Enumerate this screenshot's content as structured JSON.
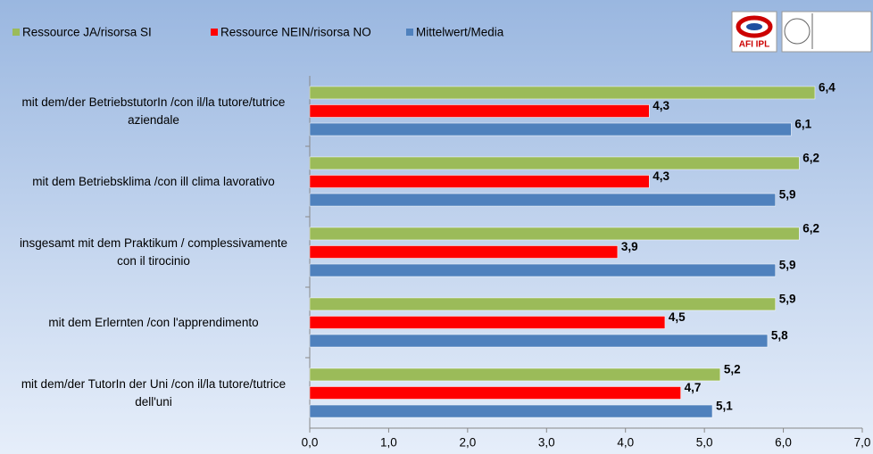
{
  "chart_data": {
    "type": "hbar",
    "logo_text": "AFI IPL",
    "categories": [
      "mit dem/der BetriebstutorIn /con il/la tutore/tutrice aziendale",
      "mit dem Betriebsklima /con ill clima lavorativo",
      "insgesamt mit dem Praktikum / complessivamente con il tirocinio",
      "mit dem Erlernten /con l'apprendimento",
      "mit dem/der TutorIn der Uni /con il/la tutore/tutrice dell'uni"
    ],
    "series": [
      {
        "name": "Ressource JA/risorsa SI",
        "color": "#9bbb59",
        "values": [
          6.4,
          6.2,
          6.2,
          5.9,
          5.2
        ],
        "value_labels": [
          "6,4",
          "6,2",
          "6,2",
          "5,9",
          "5,2"
        ]
      },
      {
        "name": "Ressource NEIN/risorsa NO",
        "color": "#ff0000",
        "values": [
          4.3,
          4.3,
          3.9,
          4.5,
          4.7
        ],
        "value_labels": [
          "4,3",
          "4,3",
          "3,9",
          "4,5",
          "4,7"
        ]
      },
      {
        "name": "Mittelwert/Media",
        "color": "#4f81bd",
        "values": [
          6.1,
          5.9,
          5.9,
          5.8,
          5.1
        ],
        "value_labels": [
          "6,1",
          "5,9",
          "5,9",
          "5,8",
          "5,1"
        ]
      }
    ],
    "xlim": [
      0,
      7
    ],
    "xticks": [
      {
        "value": 0,
        "label": "0,0"
      },
      {
        "value": 1,
        "label": "1,0"
      },
      {
        "value": 2,
        "label": "2,0"
      },
      {
        "value": 3,
        "label": "3,0"
      },
      {
        "value": 4,
        "label": "4,0"
      },
      {
        "value": 5,
        "label": "5,0"
      },
      {
        "value": 6,
        "label": "6,0"
      },
      {
        "value": 7,
        "label": "7,0"
      }
    ],
    "legend": "top"
  }
}
